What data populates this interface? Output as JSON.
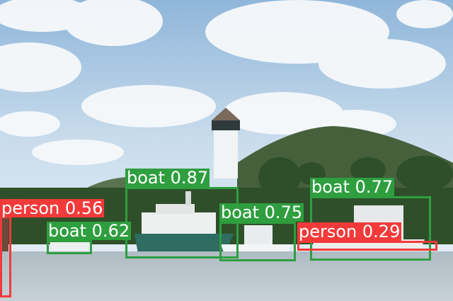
{
  "colors": {
    "boat": "#2e9e3f",
    "person": "#f23a3a",
    "label_text": "#ffffff"
  },
  "detections": [
    {
      "text": "boat 0.87",
      "class": "boat"
    },
    {
      "text": "boat 0.77",
      "class": "boat"
    },
    {
      "text": "boat 0.75",
      "class": "boat"
    },
    {
      "text": "boat 0.62",
      "class": "boat"
    },
    {
      "text": "person 0.56",
      "class": "person"
    },
    {
      "text": "person 0.29",
      "class": "person"
    }
  ]
}
